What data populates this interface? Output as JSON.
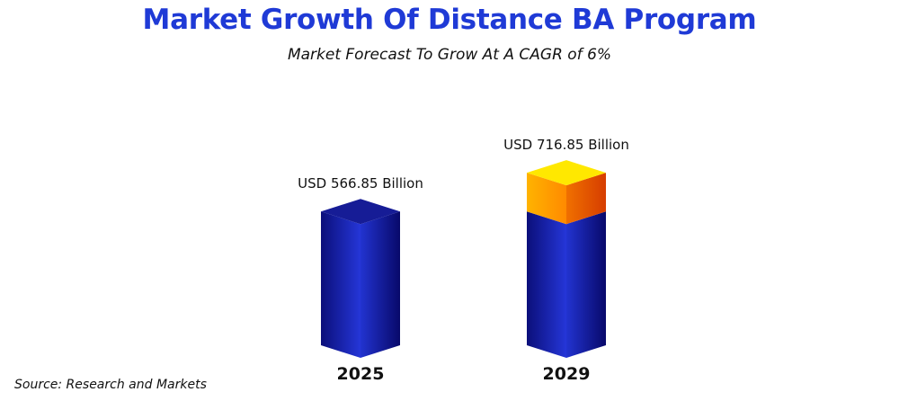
{
  "header": {
    "title": "Market Growth Of Distance BA Program",
    "subtitle": "Market Forecast To Grow At A CAGR of 6%"
  },
  "footer": {
    "source": "Source: Research and Markets"
  },
  "colors": {
    "title": "#1f3ad6",
    "bar_front_dark": "#0b0f7a",
    "bar_front_light": "#2536d8",
    "bar_side_light": "#2233d0",
    "bar_side_dark": "#08096a",
    "bar_top": "#161c96",
    "growth_front_light": "#ffb300",
    "growth_front_dark": "#ff8a00",
    "growth_side_light": "#f07000",
    "growth_side_dark": "#d63d00",
    "growth_top": "#ffe800"
  },
  "chart_data": {
    "type": "bar",
    "categories": [
      "2025",
      "2029"
    ],
    "values": [
      566.85,
      716.85
    ],
    "value_labels": [
      "USD 566.85 Billion",
      "USD 716.85 Billion"
    ],
    "ylim": [
      0,
      750
    ],
    "grid": false,
    "legend": "none"
  }
}
